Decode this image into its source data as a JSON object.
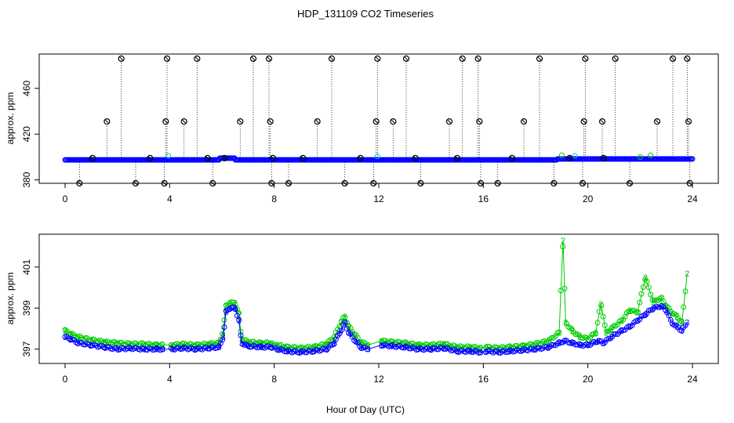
{
  "title": "HDP_131109  CO2 Timeseries",
  "xlabel": "Hour of Day (UTC)",
  "colors": {
    "black": "#000000",
    "blue": "#0000ff",
    "green": "#00cc00",
    "cyan": "#00cccc"
  },
  "chart_data": [
    {
      "type": "scatter",
      "panel": "top",
      "title": "",
      "xlabel": "",
      "ylabel": "approx. ppm",
      "xlim": [
        0,
        24
      ],
      "ylim": [
        377,
        490
      ],
      "xticks": [
        0,
        4,
        8,
        12,
        16,
        20,
        24
      ],
      "yticks": [
        380,
        420,
        460
      ],
      "base_series": {
        "name": "",
        "color": "#0000ff",
        "baseline": 397.5,
        "x_start": 0,
        "x_end": 24
      },
      "spikes_high": [
        2.15,
        3.9,
        5.05,
        7.2,
        7.8,
        10.2,
        11.95,
        13.05,
        15.2,
        15.8,
        18.15,
        19.9,
        21.05,
        23.25,
        23.8
      ],
      "spikes_mid": [
        1.6,
        3.85,
        4.55,
        6.7,
        7.85,
        9.65,
        11.9,
        12.55,
        14.7,
        15.85,
        17.55,
        19.85,
        20.55,
        22.65,
        23.85
      ],
      "spikes_low": [
        0.55,
        2.7,
        3.8,
        5.65,
        7.9,
        8.55,
        10.7,
        11.8,
        13.6,
        15.9,
        16.55,
        18.7,
        19.8,
        21.6,
        23.9
      ],
      "small_marks": [
        1.05,
        3.25,
        5.45,
        6.1,
        7.95,
        9.1,
        11.3,
        13.4,
        15.0,
        17.1,
        19.3,
        20.6
      ],
      "values": {
        "high": 486,
        "mid": 431,
        "low": 377,
        "small": 399
      }
    },
    {
      "type": "scatter",
      "panel": "bottom",
      "title": "",
      "xlabel": "Hour of Day (UTC)",
      "ylabel": "approx. ppm",
      "xlim": [
        0,
        24
      ],
      "ylim": [
        396.3,
        402.6
      ],
      "xticks": [
        0,
        4,
        8,
        12,
        16,
        20,
        24
      ],
      "yticks": [
        397,
        399,
        401
      ],
      "series": [
        {
          "name": "",
          "symbol": "3",
          "color": "#0000ff",
          "points": [
            [
              0.0,
              397.6
            ],
            [
              0.2,
              397.5
            ],
            [
              0.5,
              397.3
            ],
            [
              1.0,
              397.2
            ],
            [
              1.5,
              397.1
            ],
            [
              2.0,
              397.0
            ],
            [
              2.5,
              397.05
            ],
            [
              3.0,
              397.0
            ],
            [
              3.5,
              397.0
            ],
            [
              3.75,
              397.0
            ],
            [
              4.1,
              397.0
            ],
            [
              4.5,
              397.05
            ],
            [
              5.0,
              397.0
            ],
            [
              5.5,
              397.05
            ],
            [
              5.9,
              397.1
            ],
            [
              6.05,
              397.6
            ],
            [
              6.15,
              398.8
            ],
            [
              6.3,
              399.0
            ],
            [
              6.5,
              399.0
            ],
            [
              6.65,
              398.4
            ],
            [
              6.75,
              397.3
            ],
            [
              7.0,
              397.15
            ],
            [
              7.5,
              397.1
            ],
            [
              7.9,
              397.1
            ],
            [
              8.1,
              397.0
            ],
            [
              8.5,
              396.9
            ],
            [
              9.0,
              396.85
            ],
            [
              9.5,
              396.9
            ],
            [
              10.0,
              397.0
            ],
            [
              10.3,
              397.3
            ],
            [
              10.55,
              397.9
            ],
            [
              10.7,
              398.3
            ],
            [
              10.85,
              397.8
            ],
            [
              11.1,
              397.4
            ],
            [
              11.3,
              397.1
            ],
            [
              11.6,
              397.0
            ],
            [
              12.1,
              397.2
            ],
            [
              12.5,
              397.15
            ],
            [
              13.0,
              397.1
            ],
            [
              13.5,
              397.0
            ],
            [
              14.0,
              397.0
            ],
            [
              14.5,
              397.05
            ],
            [
              15.0,
              396.9
            ],
            [
              15.5,
              396.9
            ],
            [
              15.9,
              396.85
            ],
            [
              16.1,
              396.9
            ],
            [
              16.6,
              396.85
            ],
            [
              17.0,
              396.9
            ],
            [
              17.5,
              396.95
            ],
            [
              18.0,
              397.0
            ],
            [
              18.5,
              397.1
            ],
            [
              18.9,
              397.3
            ],
            [
              19.1,
              397.4
            ],
            [
              19.4,
              397.3
            ],
            [
              19.7,
              397.2
            ],
            [
              20.0,
              397.2
            ],
            [
              20.4,
              397.4
            ],
            [
              20.6,
              397.3
            ],
            [
              20.9,
              397.6
            ],
            [
              21.3,
              397.9
            ],
            [
              21.6,
              398.1
            ],
            [
              21.9,
              398.4
            ],
            [
              22.2,
              398.7
            ],
            [
              22.5,
              399.0
            ],
            [
              22.8,
              399.1
            ],
            [
              23.0,
              398.9
            ],
            [
              23.2,
              398.3
            ],
            [
              23.4,
              398.1
            ],
            [
              23.6,
              397.9
            ],
            [
              23.8,
              398.3
            ]
          ]
        },
        {
          "name": "",
          "symbol": "2",
          "color": "#00cc00",
          "points": [
            [
              0.0,
              397.9
            ],
            [
              0.2,
              397.75
            ],
            [
              0.5,
              397.6
            ],
            [
              1.0,
              397.45
            ],
            [
              1.5,
              397.35
            ],
            [
              2.0,
              397.3
            ],
            [
              2.5,
              397.25
            ],
            [
              3.0,
              397.25
            ],
            [
              3.5,
              397.2
            ],
            [
              3.75,
              397.2
            ],
            [
              4.1,
              397.2
            ],
            [
              4.5,
              397.25
            ],
            [
              5.0,
              397.2
            ],
            [
              5.5,
              397.25
            ],
            [
              5.9,
              397.3
            ],
            [
              6.05,
              397.9
            ],
            [
              6.15,
              399.1
            ],
            [
              6.3,
              399.25
            ],
            [
              6.5,
              399.25
            ],
            [
              6.65,
              398.7
            ],
            [
              6.75,
              397.5
            ],
            [
              7.0,
              397.35
            ],
            [
              7.5,
              397.3
            ],
            [
              7.9,
              397.3
            ],
            [
              8.1,
              397.2
            ],
            [
              8.5,
              397.1
            ],
            [
              9.0,
              397.05
            ],
            [
              9.5,
              397.1
            ],
            [
              10.0,
              397.25
            ],
            [
              10.3,
              397.6
            ],
            [
              10.55,
              398.3
            ],
            [
              10.7,
              398.6
            ],
            [
              10.85,
              398.1
            ],
            [
              11.1,
              397.7
            ],
            [
              11.3,
              397.35
            ],
            [
              11.6,
              397.2
            ],
            [
              12.1,
              397.4
            ],
            [
              12.5,
              397.35
            ],
            [
              13.0,
              397.3
            ],
            [
              13.5,
              397.2
            ],
            [
              14.0,
              397.2
            ],
            [
              14.5,
              397.25
            ],
            [
              15.0,
              397.1
            ],
            [
              15.5,
              397.1
            ],
            [
              15.9,
              397.05
            ],
            [
              16.1,
              397.1
            ],
            [
              16.6,
              397.05
            ],
            [
              17.0,
              397.1
            ],
            [
              17.5,
              397.15
            ],
            [
              18.0,
              397.25
            ],
            [
              18.5,
              397.4
            ],
            [
              18.9,
              397.8
            ],
            [
              19.05,
              402.3
            ],
            [
              19.15,
              398.3
            ],
            [
              19.4,
              397.9
            ],
            [
              19.7,
              397.6
            ],
            [
              20.0,
              397.5
            ],
            [
              20.3,
              397.8
            ],
            [
              20.5,
              399.2
            ],
            [
              20.7,
              397.8
            ],
            [
              20.9,
              398.0
            ],
            [
              21.3,
              398.4
            ],
            [
              21.6,
              398.9
            ],
            [
              21.9,
              398.8
            ],
            [
              22.2,
              400.5
            ],
            [
              22.5,
              399.3
            ],
            [
              22.8,
              399.5
            ],
            [
              23.0,
              399.1
            ],
            [
              23.2,
              398.8
            ],
            [
              23.4,
              398.6
            ],
            [
              23.6,
              398.3
            ],
            [
              23.8,
              400.7
            ]
          ]
        }
      ]
    }
  ]
}
